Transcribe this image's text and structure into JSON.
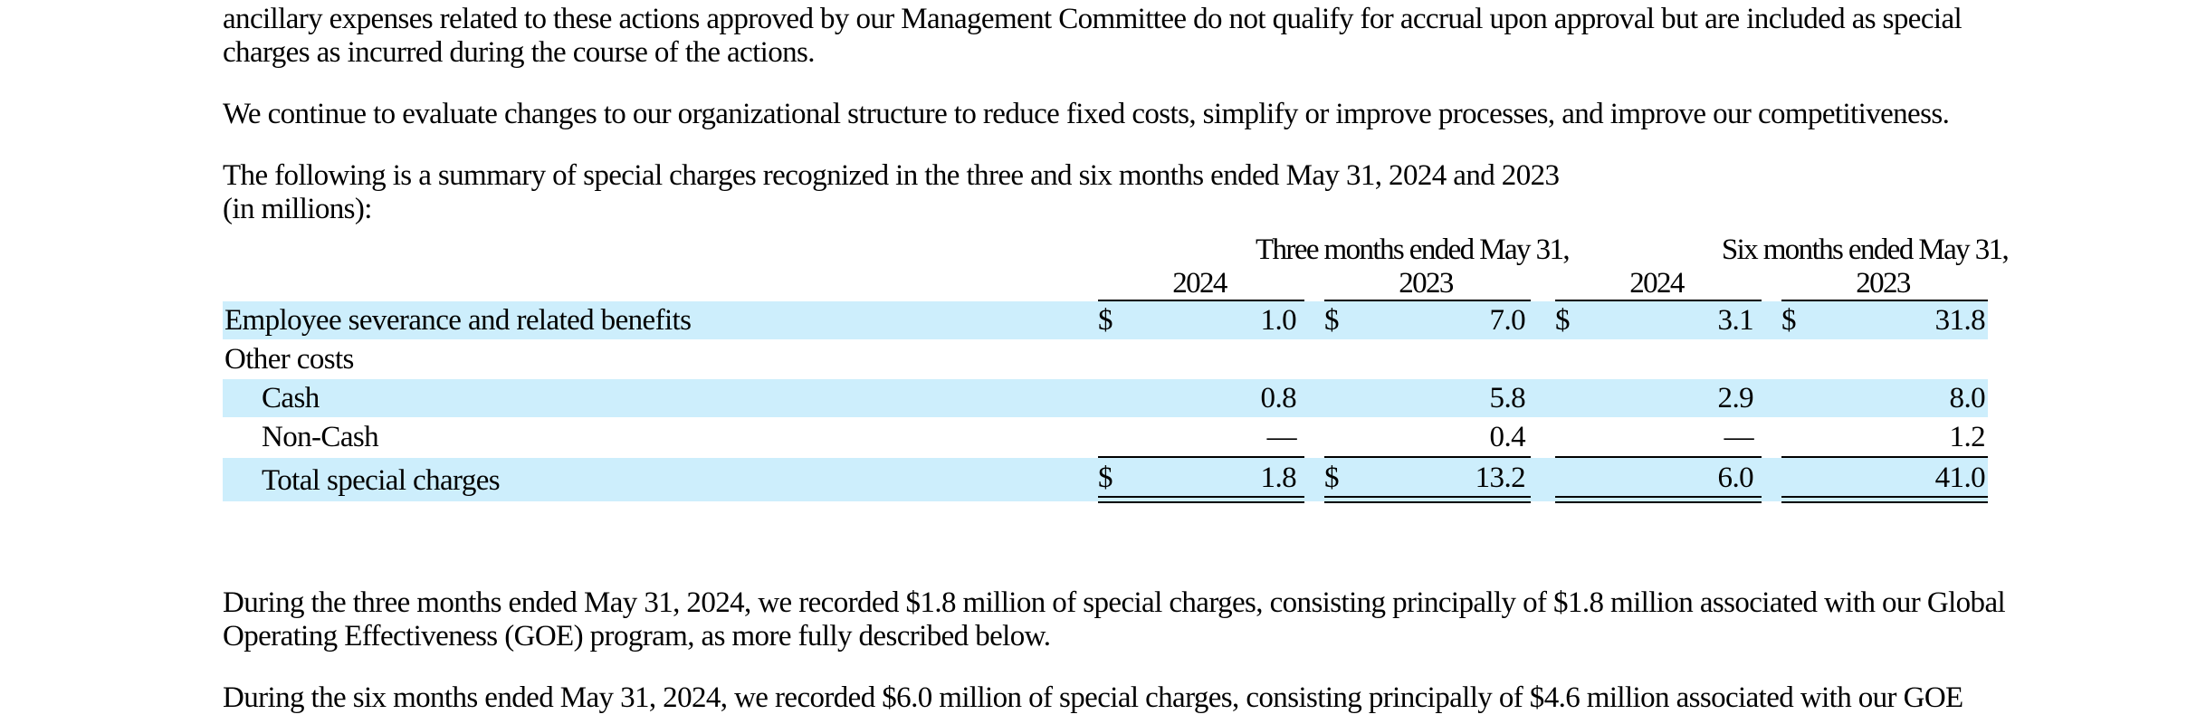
{
  "paragraphs": {
    "p1": {
      "line1": "ancillary expenses related to these actions approved by our Management Committee do not qualify for accrual upon approval but are included as special",
      "line2": "charges as incurred during the course of the actions."
    },
    "p2": {
      "line1": "We continue to evaluate changes to our organizational structure to reduce fixed costs, simplify or improve processes, and improve our competitiveness."
    },
    "p3": {
      "line1": "The following is a summary of special charges recognized in the three and six months ended May 31, 2024 and 2023",
      "line2": "(in millions):"
    },
    "p4": {
      "line1": "During the three months ended May 31, 2024, we recorded $1.8 million of special charges, consisting principally of $1.8 million associated with our Global",
      "line2": "Operating Effectiveness (GOE) program, as more fully described below."
    },
    "p5": {
      "line1": "During the six months ended May 31, 2024, we recorded $6.0 million of special charges, consisting principally of $4.6 million associated with our GOE"
    }
  },
  "table": {
    "group_headers": {
      "three_months": "Three months ended May 31,",
      "six_months": "Six months ended May 31,"
    },
    "year_headers": [
      "2024",
      "2023",
      "2024",
      "2023"
    ],
    "currency_symbol": "$",
    "rows": [
      {
        "label": "Employee severance and related benefits",
        "values": [
          "1.0",
          "7.0",
          "3.1",
          "31.8"
        ]
      },
      {
        "label": "Other costs",
        "values": [
          "",
          "",
          "",
          ""
        ]
      },
      {
        "label": "Cash",
        "values": [
          "0.8",
          "5.8",
          "2.9",
          "8.0"
        ]
      },
      {
        "label": "Non-Cash",
        "values": [
          "—",
          "0.4",
          "—",
          "1.2"
        ]
      },
      {
        "label": "Total special charges",
        "values": [
          "1.8",
          "13.2",
          "6.0",
          "41.0"
        ]
      }
    ]
  }
}
